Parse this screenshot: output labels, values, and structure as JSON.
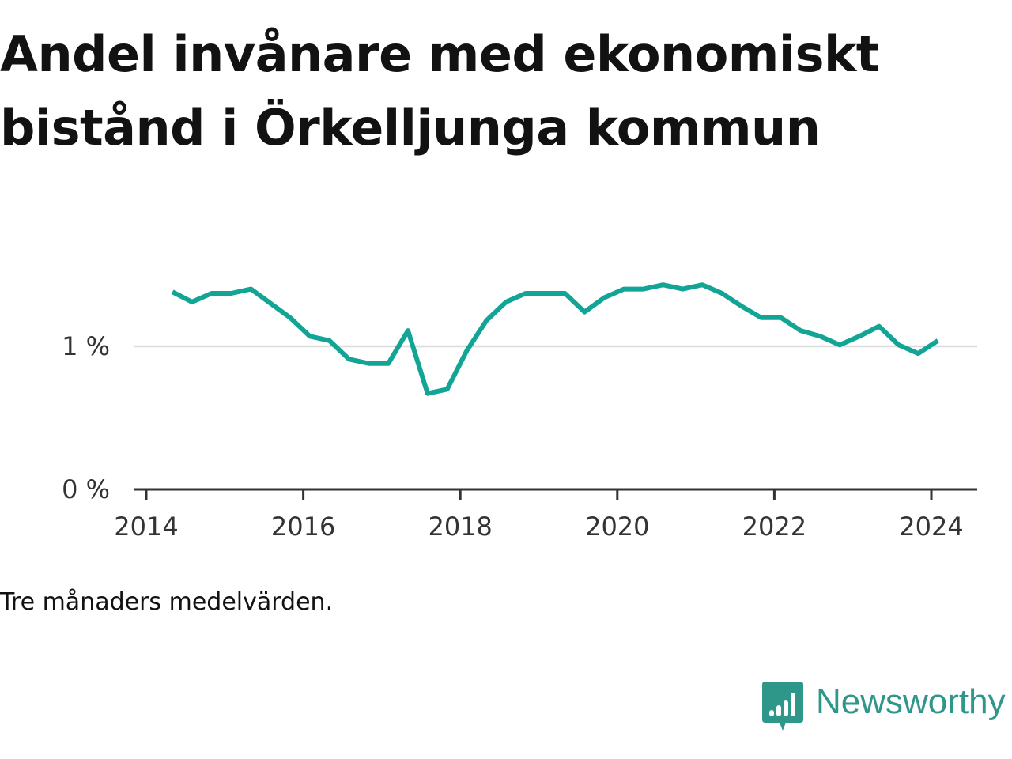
{
  "header": {
    "title": "Andel invånare med ekonomiskt bistånd i Örkelljunga kommun"
  },
  "footer": {
    "note": "Tre månaders medelvärden.",
    "brand": "Newsworthy"
  },
  "colors": {
    "line": "#12a595",
    "gridline": "#dddddd",
    "axis": "#333333",
    "brand": "#2f968a"
  },
  "chart_data": {
    "type": "line",
    "title": "Andel invånare med ekonomiskt bistånd i Örkelljunga kommun",
    "xlabel": "",
    "ylabel": "",
    "x_ticks": [
      "2014",
      "2016",
      "2018",
      "2020",
      "2022",
      "2024"
    ],
    "y_ticks": [
      "0 %",
      "1 %"
    ],
    "ylim": [
      0,
      1.6
    ],
    "grid": "horizontal",
    "legend": "none",
    "series": [
      {
        "x": [
          "2014-05",
          "2014-08",
          "2014-11",
          "2015-02",
          "2015-05",
          "2015-08",
          "2015-11",
          "2016-02",
          "2016-05",
          "2016-08",
          "2016-11",
          "2017-02",
          "2017-05",
          "2017-08",
          "2017-11",
          "2018-02",
          "2018-05",
          "2018-08",
          "2018-11",
          "2019-02",
          "2019-05",
          "2019-08",
          "2019-11",
          "2020-02",
          "2020-05",
          "2020-08",
          "2020-11",
          "2021-02",
          "2021-05",
          "2021-08",
          "2021-11",
          "2022-02",
          "2022-05",
          "2022-08",
          "2022-11",
          "2023-02",
          "2023-05",
          "2023-08",
          "2023-11",
          "2024-02"
        ],
        "values": [
          1.38,
          1.31,
          1.37,
          1.37,
          1.4,
          1.3,
          1.2,
          1.07,
          1.04,
          0.91,
          0.88,
          0.88,
          1.11,
          0.67,
          0.7,
          0.97,
          1.18,
          1.31,
          1.37,
          1.37,
          1.37,
          1.24,
          1.34,
          1.4,
          1.4,
          1.43,
          1.4,
          1.43,
          1.37,
          1.28,
          1.2,
          1.2,
          1.11,
          1.07,
          1.01,
          1.07,
          1.14,
          1.01,
          0.95,
          1.04
        ]
      }
    ]
  }
}
